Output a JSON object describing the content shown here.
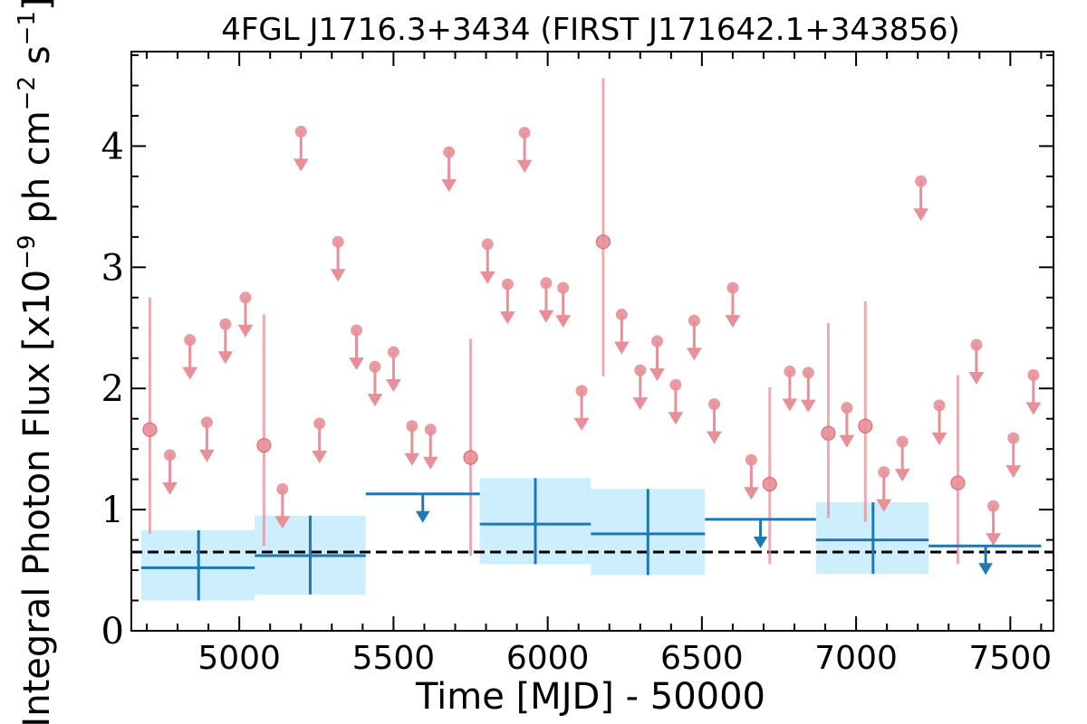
{
  "chart_data": {
    "type": "scatter",
    "title": "4FGL J1716.3+3434 (FIRST J171642.1+343856)",
    "xlabel": "Time [MJD] - 50000",
    "ylabel": "Integral Photon Flux [x10",
    "ylabel_exp1": "−9",
    "ylabel_mid": " ph cm",
    "ylabel_exp2": "−2",
    "ylabel_mid2": " s",
    "ylabel_exp3": "−1",
    "ylabel_end": "]",
    "xlim": [
      4650,
      7640
    ],
    "ylim": [
      0,
      4.78
    ],
    "xticks": [
      5000,
      5500,
      6000,
      6500,
      7000,
      7500
    ],
    "yticks": [
      0,
      1,
      2,
      3,
      4
    ],
    "x_minor_step": 100,
    "y_minor_step": 0.25,
    "reference_level": 0.65,
    "colors": {
      "short_bins": "#e88f97",
      "long_bins": "#1f77b4",
      "band_fill": "#cdeefc",
      "reference_line": "#000000"
    },
    "short_bin_detections": [
      {
        "x": 4710,
        "y": 1.66,
        "lo": 0.8,
        "hi": 2.75
      },
      {
        "x": 5080,
        "y": 1.53,
        "lo": 0.7,
        "hi": 2.61
      },
      {
        "x": 5750,
        "y": 1.43,
        "lo": 0.62,
        "hi": 2.41
      },
      {
        "x": 6180,
        "y": 3.21,
        "lo": 2.1,
        "hi": 4.56
      },
      {
        "x": 6720,
        "y": 1.21,
        "lo": 0.55,
        "hi": 2.01
      },
      {
        "x": 6910,
        "y": 1.63,
        "lo": 0.93,
        "hi": 2.54
      },
      {
        "x": 7030,
        "y": 1.69,
        "lo": 0.9,
        "hi": 2.72
      },
      {
        "x": 7330,
        "y": 1.22,
        "lo": 0.55,
        "hi": 2.11
      }
    ],
    "short_bin_upper_limits": [
      {
        "x": 4775,
        "y": 1.45
      },
      {
        "x": 4840,
        "y": 2.4
      },
      {
        "x": 4895,
        "y": 1.72
      },
      {
        "x": 4955,
        "y": 2.53
      },
      {
        "x": 5020,
        "y": 2.75
      },
      {
        "x": 5140,
        "y": 1.17
      },
      {
        "x": 5200,
        "y": 4.12
      },
      {
        "x": 5260,
        "y": 1.71
      },
      {
        "x": 5320,
        "y": 3.21
      },
      {
        "x": 5380,
        "y": 2.48
      },
      {
        "x": 5440,
        "y": 2.18
      },
      {
        "x": 5500,
        "y": 2.3
      },
      {
        "x": 5560,
        "y": 1.69
      },
      {
        "x": 5620,
        "y": 1.66
      },
      {
        "x": 5680,
        "y": 3.95
      },
      {
        "x": 5805,
        "y": 3.19
      },
      {
        "x": 5870,
        "y": 2.86
      },
      {
        "x": 5925,
        "y": 4.11
      },
      {
        "x": 5995,
        "y": 2.87
      },
      {
        "x": 6050,
        "y": 2.83
      },
      {
        "x": 6110,
        "y": 1.98
      },
      {
        "x": 6240,
        "y": 2.61
      },
      {
        "x": 6300,
        "y": 2.15
      },
      {
        "x": 6355,
        "y": 2.39
      },
      {
        "x": 6415,
        "y": 2.03
      },
      {
        "x": 6475,
        "y": 2.56
      },
      {
        "x": 6540,
        "y": 1.87
      },
      {
        "x": 6600,
        "y": 2.83
      },
      {
        "x": 6660,
        "y": 1.41
      },
      {
        "x": 6785,
        "y": 2.14
      },
      {
        "x": 6845,
        "y": 2.13
      },
      {
        "x": 6970,
        "y": 1.84
      },
      {
        "x": 7090,
        "y": 1.31
      },
      {
        "x": 7150,
        "y": 1.56
      },
      {
        "x": 7210,
        "y": 3.71
      },
      {
        "x": 7270,
        "y": 1.86
      },
      {
        "x": 7390,
        "y": 2.36
      },
      {
        "x": 7445,
        "y": 1.03
      },
      {
        "x": 7510,
        "y": 1.59
      },
      {
        "x": 7575,
        "y": 2.11
      }
    ],
    "long_bin_detections": [
      {
        "x": 4868,
        "xlo": 4682,
        "xhi": 5050,
        "y": 0.52,
        "lo": 0.25,
        "hi": 0.83
      },
      {
        "x": 5230,
        "xlo": 5050,
        "xhi": 5410,
        "y": 0.62,
        "lo": 0.3,
        "hi": 0.95
      },
      {
        "x": 5960,
        "xlo": 5780,
        "xhi": 6140,
        "y": 0.88,
        "lo": 0.55,
        "hi": 1.26
      },
      {
        "x": 6325,
        "xlo": 6140,
        "xhi": 6510,
        "y": 0.8,
        "lo": 0.46,
        "hi": 1.17
      },
      {
        "x": 7055,
        "xlo": 6870,
        "xhi": 7235,
        "y": 0.75,
        "lo": 0.47,
        "hi": 1.06
      }
    ],
    "long_bin_upper_limits": [
      {
        "x": 5595,
        "xlo": 5410,
        "xhi": 5780,
        "y": 1.13
      },
      {
        "x": 6690,
        "xlo": 6510,
        "xhi": 6870,
        "y": 0.92
      },
      {
        "x": 7420,
        "xlo": 7235,
        "xhi": 7600,
        "y": 0.7
      }
    ]
  }
}
